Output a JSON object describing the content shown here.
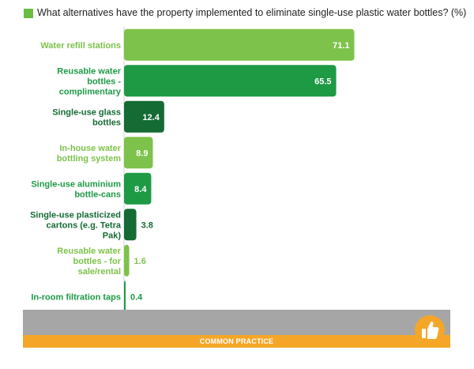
{
  "chart_data": {
    "type": "bar",
    "orientation": "horizontal",
    "title": "What alternatives have the property implemented to eliminate single-use plastic water bottles? (%)",
    "categories": [
      "Water refill stations",
      "Reusable water bottles - complimentary",
      "Single-use glass bottles",
      "In-house water bottling system",
      "Single-use aluminium bottle-cans",
      "Single-use plasticized cartons (e.g. Tetra Pak)",
      "Reusable water bottles - for sale/rental",
      "In-room filtration taps"
    ],
    "category_lines": [
      [
        "Water refill stations"
      ],
      [
        "Reusable water",
        "bottles -",
        "complimentary"
      ],
      [
        "Single-use glass",
        "bottles"
      ],
      [
        "In-house water",
        "bottling system"
      ],
      [
        "Single-use aluminium",
        "bottle-cans"
      ],
      [
        "Single-use plasticized",
        "cartons (e.g. Tetra",
        "Pak)"
      ],
      [
        "Reusable water",
        "bottles - for",
        "sale/rental"
      ],
      [
        "In-room filtration taps"
      ]
    ],
    "values": [
      71.1,
      65.5,
      12.4,
      8.9,
      8.4,
      3.8,
      1.6,
      0.4
    ],
    "value_labels": [
      "71.1",
      "65.5",
      "12.4",
      "8.9",
      "8.4",
      "3.8",
      "1.6",
      "0.4"
    ],
    "colors": [
      "#7dc24a",
      "#1e9a45",
      "#156b34",
      "#7dc24a",
      "#1e9a45",
      "#156b34",
      "#7dc24a",
      "#1e9a45"
    ],
    "label_colors": [
      "#7dc24a",
      "#1e9a45",
      "#156b34",
      "#7dc24a",
      "#1e9a45",
      "#156b34",
      "#7dc24a",
      "#1e9a45"
    ],
    "xlim": [
      0,
      100
    ],
    "grid": false,
    "legend": "top-left"
  },
  "footer": {
    "label": "COMMON PRACTICE",
    "icon": "thumbs-up-icon",
    "colors": {
      "band": "#a6a6a6",
      "strip": "#f5a628"
    }
  }
}
